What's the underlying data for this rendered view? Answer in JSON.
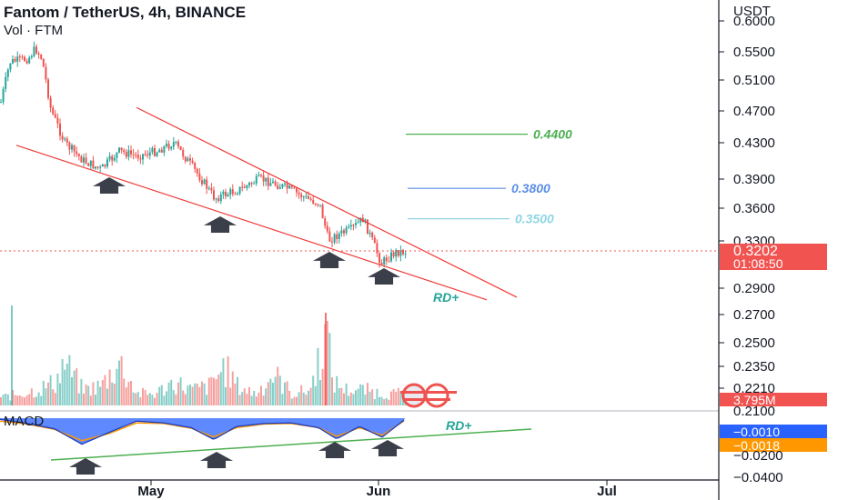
{
  "header": {
    "title": "Fantom / TetherUS, 4h, BINANCE",
    "subtitle": "Vol · FTM"
  },
  "price_axis": {
    "unit": "USDT",
    "ticks": [
      "0.6000",
      "0.5500",
      "0.5100",
      "0.4700",
      "0.4300",
      "0.3900",
      "0.3600",
      "0.3300",
      "0.2900",
      "0.2700",
      "0.2500",
      "0.2350",
      "0.2210",
      "0.2100"
    ]
  },
  "time_axis": {
    "ticks": [
      "May",
      "Jun",
      "Jul"
    ]
  },
  "badges": {
    "last_price": "0.3202",
    "countdown": "01:08:50",
    "volume": "3.795M",
    "macd": "−0.0010",
    "signal": "−0.0018",
    "macd_low": "−0.0200",
    "macd_lower": "−0.0400"
  },
  "levels": [
    {
      "label": "0.4400",
      "color": "#4caf50"
    },
    {
      "label": "0.3800",
      "color": "#5b8ee6"
    },
    {
      "label": "0.3500",
      "color": "#8fd6e3"
    }
  ],
  "annotations": {
    "rd_price": "RD+",
    "rd_macd": "RD+",
    "macd_label": "MACD"
  },
  "colors": {
    "up": "#26a69a",
    "down": "#ef5350",
    "wedge": "#ef3b3b",
    "arrow": "#3b3f4a",
    "macd_fill": "#2962ff",
    "signal": "#ff9800",
    "trend": "#4caf50"
  },
  "chart_data": {
    "type": "candlestick",
    "title": "Fantom / TetherUS, 4h, BINANCE",
    "series_name": "FTM/USDT",
    "y_axis": {
      "scale": "log",
      "range": [
        0.2,
        0.6
      ],
      "unit": "USDT"
    },
    "x_axis": {
      "ticks": [
        "May",
        "Jun",
        "Jul"
      ]
    },
    "last_price": 0.3202,
    "price_path": [
      [
        0,
        0.48
      ],
      [
        10,
        0.535
      ],
      [
        30,
        0.54
      ],
      [
        38,
        0.555
      ],
      [
        45,
        0.54
      ],
      [
        55,
        0.47
      ],
      [
        70,
        0.43
      ],
      [
        90,
        0.41
      ],
      [
        110,
        0.4
      ],
      [
        130,
        0.42
      ],
      [
        150,
        0.415
      ],
      [
        170,
        0.42
      ],
      [
        190,
        0.43
      ],
      [
        205,
        0.41
      ],
      [
        220,
        0.39
      ],
      [
        235,
        0.37
      ],
      [
        250,
        0.375
      ],
      [
        265,
        0.38
      ],
      [
        285,
        0.39
      ],
      [
        300,
        0.385
      ],
      [
        315,
        0.38
      ],
      [
        335,
        0.37
      ],
      [
        350,
        0.365
      ],
      [
        360,
        0.33
      ],
      [
        370,
        0.335
      ],
      [
        385,
        0.34
      ],
      [
        398,
        0.35
      ],
      [
        408,
        0.33
      ],
      [
        418,
        0.31
      ],
      [
        425,
        0.315
      ],
      [
        435,
        0.32
      ],
      [
        445,
        0.3202
      ]
    ],
    "volume_path": [
      [
        0,
        10
      ],
      [
        20,
        15
      ],
      [
        40,
        20
      ],
      [
        60,
        30
      ],
      [
        70,
        55
      ],
      [
        90,
        20
      ],
      [
        110,
        25
      ],
      [
        130,
        55
      ],
      [
        150,
        15
      ],
      [
        170,
        15
      ],
      [
        190,
        30
      ],
      [
        210,
        20
      ],
      [
        230,
        25
      ],
      [
        245,
        50
      ],
      [
        260,
        25
      ],
      [
        280,
        15
      ],
      [
        300,
        40
      ],
      [
        320,
        15
      ],
      [
        340,
        20
      ],
      [
        358,
        95
      ],
      [
        365,
        30
      ],
      [
        380,
        20
      ],
      [
        400,
        20
      ],
      [
        420,
        15
      ],
      [
        445,
        15
      ]
    ],
    "macd_path": [
      [
        0,
        -0.001
      ],
      [
        30,
        -0.0045
      ],
      [
        60,
        -0.009
      ],
      [
        90,
        -0.022
      ],
      [
        120,
        -0.012
      ],
      [
        150,
        -0.0025
      ],
      [
        180,
        -0.004
      ],
      [
        210,
        -0.008
      ],
      [
        235,
        -0.018
      ],
      [
        260,
        -0.007
      ],
      [
        290,
        -0.0045
      ],
      [
        320,
        -0.004
      ],
      [
        350,
        -0.008
      ],
      [
        370,
        -0.0175
      ],
      [
        395,
        -0.007
      ],
      [
        420,
        -0.016
      ],
      [
        445,
        -0.001
      ]
    ],
    "signal_path": [
      [
        0,
        -0.0025
      ],
      [
        30,
        -0.005
      ],
      [
        60,
        -0.0095
      ],
      [
        90,
        -0.019
      ],
      [
        120,
        -0.013
      ],
      [
        150,
        -0.004
      ],
      [
        180,
        -0.0045
      ],
      [
        210,
        -0.0085
      ],
      [
        235,
        -0.016
      ],
      [
        260,
        -0.008
      ],
      [
        290,
        -0.005
      ],
      [
        320,
        -0.0045
      ],
      [
        350,
        -0.008
      ],
      [
        370,
        -0.0155
      ],
      [
        395,
        -0.008
      ],
      [
        420,
        -0.0145
      ],
      [
        445,
        -0.0018
      ]
    ],
    "resistance_line": [
      [
        150,
        0.473
      ],
      [
        568,
        0.283
      ]
    ],
    "support_line": [
      [
        18,
        0.427
      ],
      [
        535,
        0.281
      ]
    ],
    "targets": [
      0.44,
      0.38,
      0.35
    ],
    "volume_last": "3.795M",
    "macd": {
      "value": -0.001,
      "signal": -0.0018,
      "divergence": "RD+"
    }
  }
}
